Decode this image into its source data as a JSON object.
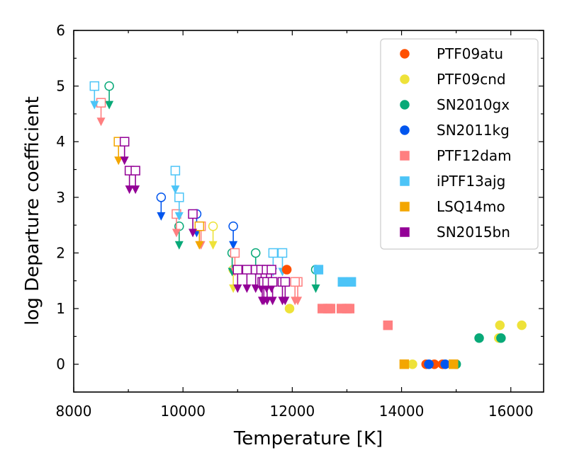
{
  "chart_data": {
    "type": "scatter",
    "title": "",
    "xlabel": "Temperature [K]",
    "ylabel": "log Departure coefficient",
    "xlim": [
      8000,
      16600
    ],
    "ylim": [
      -0.5,
      6
    ],
    "xticks": [
      8000,
      10000,
      12000,
      14000,
      16000
    ],
    "yticks": [
      0,
      1,
      2,
      3,
      4,
      5,
      6
    ],
    "legend_position": "top-right",
    "series": [
      {
        "name": "PTF09atu",
        "color": "#ff5000",
        "marker": "circle",
        "points": [
          [
            11900,
            1.7
          ],
          [
            14450,
            0.0
          ],
          [
            14600,
            0.0
          ],
          [
            14750,
            0.0
          ]
        ],
        "upper_limits": []
      },
      {
        "name": "PTF09cnd",
        "color": "#eee239",
        "marker": "circle",
        "points": [
          [
            11950,
            1.0
          ],
          [
            14200,
            0.0
          ],
          [
            15800,
            0.7
          ],
          [
            16200,
            0.7
          ],
          [
            15780,
            0.47
          ]
        ],
        "upper_limits": [
          [
            10550,
            2.48
          ],
          [
            10920,
            1.7
          ]
        ]
      },
      {
        "name": "SN2010gx",
        "color": "#08a978",
        "marker": "circle",
        "points": [
          [
            15000,
            0.0
          ],
          [
            15420,
            0.47
          ],
          [
            15820,
            0.47
          ]
        ],
        "upper_limits": [
          [
            8650,
            5.0
          ],
          [
            9930,
            2.48
          ],
          [
            10900,
            2.0
          ],
          [
            11330,
            2.0
          ],
          [
            12430,
            1.7
          ]
        ]
      },
      {
        "name": "SN2011kg",
        "color": "#0055ee",
        "marker": "circle",
        "points": [
          [
            14500,
            0.0
          ],
          [
            14800,
            0.0
          ]
        ],
        "upper_limits": [
          [
            9600,
            3.0
          ],
          [
            10250,
            2.7
          ],
          [
            10920,
            2.48
          ]
        ]
      },
      {
        "name": "PTF12dam",
        "color": "#ff7f80",
        "marker": "square",
        "points": [
          [
            12550,
            1.0
          ],
          [
            12650,
            1.0
          ],
          [
            12700,
            1.0
          ],
          [
            12900,
            1.0
          ],
          [
            13000,
            1.0
          ],
          [
            13050,
            1.0
          ],
          [
            13750,
            0.7
          ]
        ],
        "upper_limits": [
          [
            8500,
            4.7
          ],
          [
            9880,
            2.7
          ],
          [
            10330,
            2.48
          ],
          [
            10950,
            2.0
          ],
          [
            12100,
            1.48
          ],
          [
            12050,
            1.48
          ]
        ]
      },
      {
        "name": "iPTF13ajg",
        "color": "#4cc4f7",
        "marker": "square",
        "points": [
          [
            12480,
            1.7
          ],
          [
            12920,
            1.48
          ],
          [
            13080,
            1.48
          ]
        ],
        "upper_limits": [
          [
            8380,
            5.0
          ],
          [
            9860,
            3.48
          ],
          [
            9930,
            3.0
          ],
          [
            11650,
            2.0
          ],
          [
            11820,
            2.0
          ]
        ]
      },
      {
        "name": "LSQ14mo",
        "color": "#f3a600",
        "marker": "square",
        "points": [
          [
            14050,
            0.0
          ],
          [
            14950,
            0.0
          ]
        ],
        "upper_limits": [
          [
            8820,
            4.0
          ],
          [
            10300,
            2.48
          ]
        ]
      },
      {
        "name": "SN2015bn",
        "color": "#930096",
        "marker": "square",
        "points": [],
        "upper_limits": [
          [
            8930,
            4.0
          ],
          [
            9020,
            3.48
          ],
          [
            9130,
            3.48
          ],
          [
            10180,
            2.7
          ],
          [
            11000,
            1.7
          ],
          [
            11170,
            1.7
          ],
          [
            11330,
            1.7
          ],
          [
            11430,
            1.7
          ],
          [
            11530,
            1.7
          ],
          [
            11620,
            1.7
          ],
          [
            11450,
            1.48
          ],
          [
            11480,
            1.48
          ],
          [
            11540,
            1.48
          ],
          [
            11640,
            1.48
          ],
          [
            11820,
            1.48
          ],
          [
            11870,
            1.48
          ]
        ]
      }
    ]
  }
}
